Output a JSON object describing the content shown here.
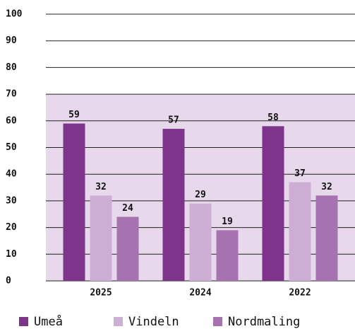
{
  "chart_data": {
    "type": "bar",
    "categories": [
      "2025",
      "2024",
      "2022"
    ],
    "series": [
      {
        "name": "Umeå",
        "color": "#7e348a",
        "values": [
          59,
          57,
          58
        ]
      },
      {
        "name": "Vindeln",
        "color": "#cdafd6",
        "values": [
          32,
          29,
          37
        ]
      },
      {
        "name": "Nordmaling",
        "color": "#a672b0",
        "values": [
          24,
          19,
          32
        ]
      }
    ],
    "ylim": [
      0,
      100
    ],
    "yticks": [
      0,
      10,
      20,
      30,
      40,
      50,
      60,
      70,
      80,
      90,
      100
    ],
    "shade_ylim": [
      0,
      70
    ],
    "shade_color": "#e7d8eb",
    "grid": true,
    "legend": "bottom"
  }
}
